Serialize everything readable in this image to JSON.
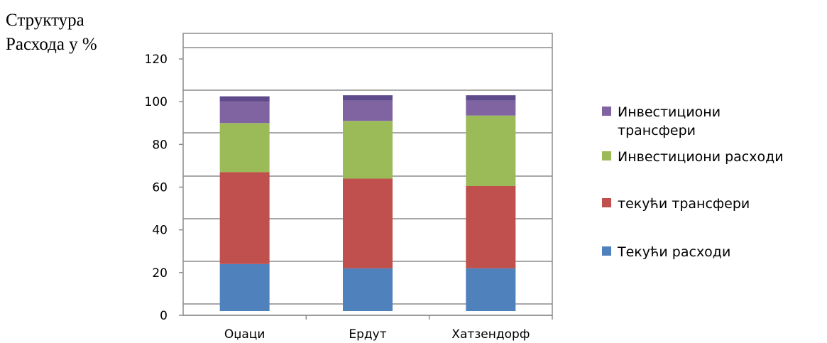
{
  "caption": {
    "line1": "Структура",
    "line2": "Расхода у %"
  },
  "chart_data": {
    "type": "bar",
    "stacked": true,
    "categories": [
      "Оџаци",
      "Ердут",
      "Хатзендорф"
    ],
    "ylim": [
      0,
      120
    ],
    "yticks": [
      "0",
      "20",
      "40",
      "60",
      "80",
      "100",
      "120"
    ],
    "grid": true,
    "legend_position": "right",
    "series": [
      {
        "name": "Текући расходи",
        "values": [
          24,
          22,
          22
        ],
        "color": "#4F81BD"
      },
      {
        "name": "текући трансфери",
        "values": [
          43,
          42,
          38.5
        ],
        "color": "#C0504D"
      },
      {
        "name": "Инвестициони расходи",
        "values": [
          23,
          27,
          33
        ],
        "color": "#9BBB59"
      },
      {
        "name": "Инвестициони трансфери",
        "values": [
          10,
          9.5,
          7
        ],
        "color": "#8064A2"
      },
      {
        "name": "",
        "values": [
          2.5,
          2.5,
          2.5
        ],
        "color": "#5F4B8B"
      }
    ],
    "legend": [
      {
        "lines": [
          "Инвестициони",
          "трансфери"
        ],
        "color": "#8064A2"
      },
      {
        "lines": [
          "Инвестициони расходи"
        ],
        "color": "#9BBB59"
      },
      {
        "lines": [
          "текући трансфери"
        ],
        "color": "#C0504D"
      },
      {
        "lines": [
          "Текући расходи"
        ],
        "color": "#4F81BD"
      }
    ]
  }
}
